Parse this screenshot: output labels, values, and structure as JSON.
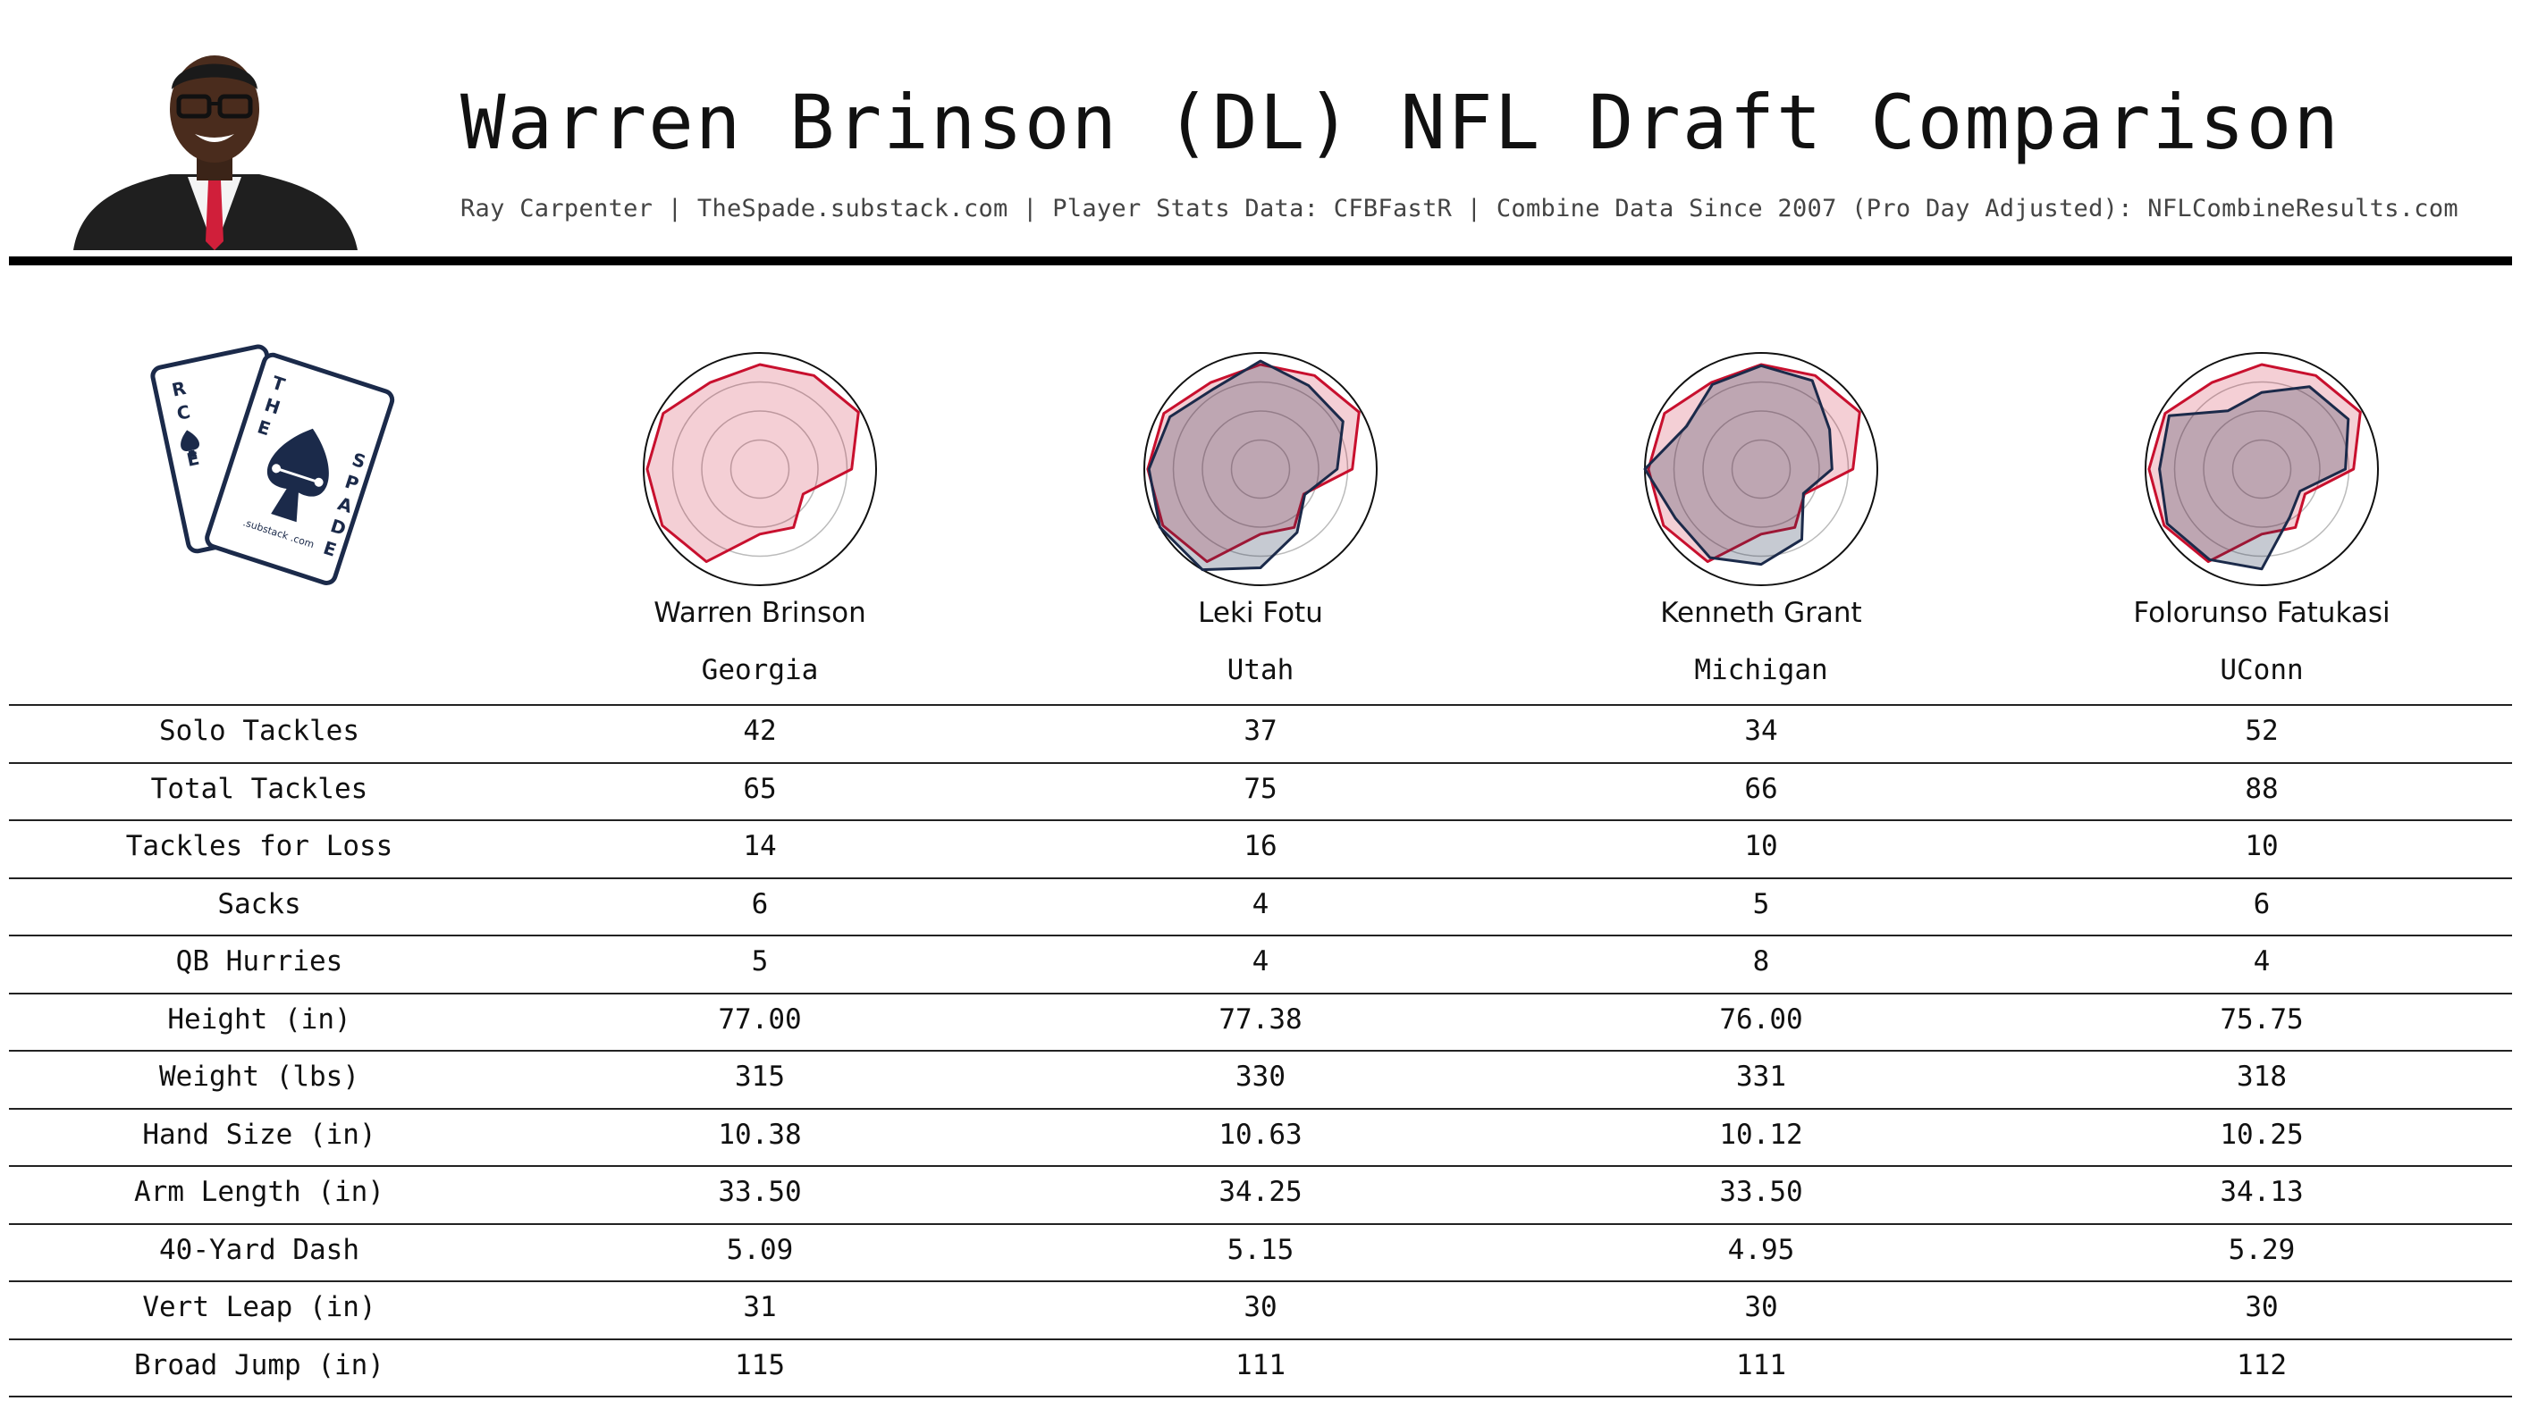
{
  "title": "Warren Brinson (DL) NFL Draft Comparison",
  "subtitle": "Ray Carpenter | TheSpade.substack.com | Player Stats Data: CFBFastR | Combine Data Since 2007 (Pro Day Adjusted): NFLCombineResults.com",
  "logo": {
    "back_card_letters": [
      "R",
      "C",
      "E"
    ],
    "front_card_top": [
      "T",
      "H",
      "E"
    ],
    "front_card_side": [
      "S",
      "P",
      "A",
      "D",
      "E"
    ],
    "mark": ".substack .com"
  },
  "colors": {
    "target": "#c8102e",
    "target_fill": "rgba(200,16,46,0.20)",
    "comp": "#1b2a4a",
    "comp_fill": "rgba(27,42,74,0.25)",
    "rule": "#000000"
  },
  "players": [
    {
      "name": "Warren Brinson",
      "school": "Georgia"
    },
    {
      "name": "Leki Fotu",
      "school": "Utah"
    },
    {
      "name": "Kenneth Grant",
      "school": "Michigan"
    },
    {
      "name": "Folorunso Fatukasi",
      "school": "UConn"
    }
  ],
  "chart_data": {
    "type": "table",
    "columns": [
      "Warren Brinson",
      "Leki Fotu",
      "Kenneth Grant",
      "Folorunso Fatukasi"
    ],
    "rows": [
      {
        "label": "Solo Tackles",
        "values": [
          "42",
          "37",
          "34",
          "52"
        ]
      },
      {
        "label": "Total Tackles",
        "values": [
          "65",
          "75",
          "66",
          "88"
        ]
      },
      {
        "label": "Tackles for Loss",
        "values": [
          "14",
          "16",
          "10",
          "10"
        ]
      },
      {
        "label": "Sacks",
        "values": [
          "6",
          "4",
          "5",
          "6"
        ]
      },
      {
        "label": "QB Hurries",
        "values": [
          "5",
          "4",
          "8",
          "4"
        ]
      },
      {
        "label": "Height (in)",
        "values": [
          "77.00",
          "77.38",
          "76.00",
          "75.75"
        ]
      },
      {
        "label": "Weight (lbs)",
        "values": [
          "315",
          "330",
          "331",
          "318"
        ]
      },
      {
        "label": "Hand Size (in)",
        "values": [
          "10.38",
          "10.63",
          "10.12",
          "10.25"
        ]
      },
      {
        "label": "Arm Length (in)",
        "values": [
          "33.50",
          "34.25",
          "33.50",
          "34.13"
        ]
      },
      {
        "label": "40-Yard Dash",
        "values": [
          "5.09",
          "5.15",
          "4.95",
          "5.29"
        ]
      },
      {
        "label": "Vert Leap (in)",
        "values": [
          "31",
          "30",
          "30",
          "30"
        ]
      },
      {
        "label": "Broad Jump (in)",
        "values": [
          "115",
          "111",
          "111",
          "112"
        ]
      }
    ],
    "radar": {
      "type": "radar",
      "target_series": "Warren Brinson",
      "rlim": [
        0,
        1
      ],
      "rings": 4,
      "series": [
        {
          "name": "Warren Brinson",
          "values": [
            0.9,
            0.93,
            0.98,
            0.79,
            0.43,
            0.58,
            0.56,
            0.92,
            0.97,
            0.97,
            0.96,
            0.86
          ]
        },
        {
          "name": "Leki Fotu",
          "values": [
            0.93,
            0.83,
            0.82,
            0.66,
            0.44,
            0.63,
            0.85,
            1.0,
            1.0,
            0.96,
            0.9,
            0.8
          ]
        },
        {
          "name": "Kenneth Grant",
          "values": [
            0.89,
            0.88,
            0.68,
            0.61,
            0.42,
            0.7,
            0.82,
            0.88,
            0.85,
            1.0,
            0.74,
            0.84
          ]
        },
        {
          "name": "Folorunso Fatukasi",
          "values": [
            0.66,
            0.82,
            0.86,
            0.72,
            0.38,
            0.48,
            0.86,
            0.9,
            0.94,
            0.88,
            0.92,
            0.58
          ]
        }
      ]
    }
  }
}
